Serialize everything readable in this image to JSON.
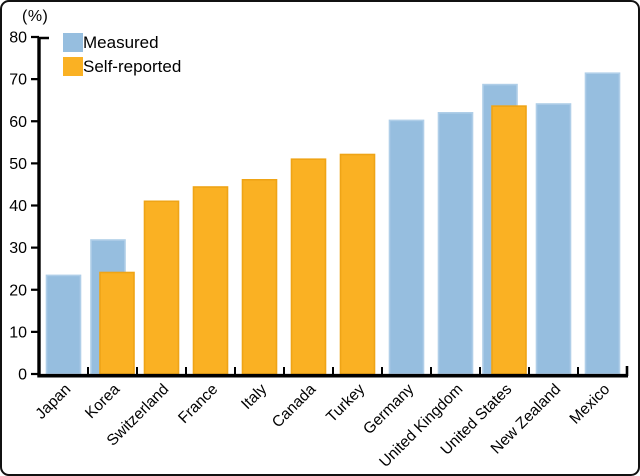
{
  "frame": {
    "unit_label": "(%)"
  },
  "legend": {
    "measured": "Measured",
    "self_reported": "Self-reported"
  },
  "colors": {
    "measured_fill": "#96BEDF",
    "measured_stroke": "#AFCEE8",
    "self_fill": "#FAB123",
    "self_stroke": "#EFA416",
    "axis": "#000000",
    "label_text": "#000000"
  },
  "chart_data": {
    "type": "bar",
    "title": "",
    "xlabel": "",
    "ylabel": "(%)",
    "unit": "%",
    "ylim": [
      0,
      80
    ],
    "ytick_step": 10,
    "yticks": [
      0,
      10,
      20,
      30,
      40,
      50,
      60,
      70,
      80
    ],
    "grid": false,
    "legend_position": "top-left",
    "categories": [
      "Japan",
      "Korea",
      "Switzerland",
      "France",
      "Italy",
      "Canada",
      "Turkey",
      "Germany",
      "United Kingdom",
      "United States",
      "New Zealand",
      "Mexico"
    ],
    "series": [
      {
        "name": "Measured",
        "values": [
          23.4,
          31.8,
          null,
          null,
          null,
          null,
          null,
          60.2,
          62.0,
          68.7,
          64.1,
          71.4
        ]
      },
      {
        "name": "Self-reported",
        "values": [
          null,
          24.1,
          41.0,
          44.4,
          46.1,
          51.0,
          52.1,
          null,
          null,
          63.6,
          null,
          null
        ]
      }
    ]
  }
}
